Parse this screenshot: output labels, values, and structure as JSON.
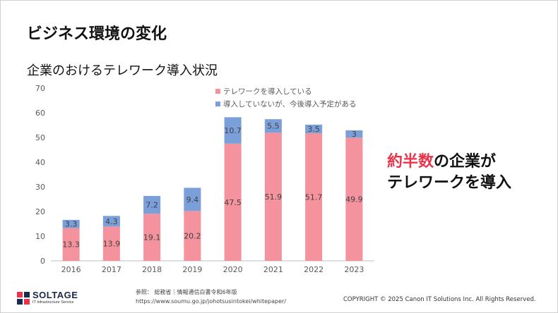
{
  "slide": {
    "title": "ビジネス環境の変化",
    "subtitle": "企業のおけるテレワーク導入状況",
    "callout_line1_highlight": "約半数",
    "callout_line1_rest": "の企業が",
    "callout_line2": "テレワークを導入",
    "source_line1": "参照： 総務省｜情報通信白書令和6年版",
    "source_line2": "https://www.soumu.go.jp/johotsusintokei/whitepaper/",
    "copyright": "COPYRIGHT © 2025 Canon IT Solutions Inc. All Rights Reserved.",
    "logo_text": "SOLTAGE",
    "logo_sub": "IT Infrastructure Service"
  },
  "colors": {
    "implemented": "#f4939d",
    "planned": "#7b9fd8",
    "accent": "#e8354a",
    "axis_text": "#595959",
    "bar_label": "#404040"
  },
  "chart_data": {
    "type": "bar",
    "stacked": true,
    "categories": [
      "2016",
      "2017",
      "2018",
      "2019",
      "2020",
      "2021",
      "2022",
      "2023"
    ],
    "series": [
      {
        "name": "テレワークを導入している",
        "values": [
          13.3,
          13.9,
          19.1,
          20.2,
          47.5,
          51.9,
          51.7,
          49.9
        ]
      },
      {
        "name": "導入していないが、今後導入予定がある",
        "values": [
          3.3,
          4.3,
          7.2,
          9.4,
          10.7,
          5.5,
          3.5,
          3
        ]
      }
    ],
    "y_ticks": [
      0,
      10,
      20,
      30,
      40,
      50,
      60,
      70
    ],
    "ylim": [
      0,
      70
    ],
    "grid": false,
    "legend": "top-right"
  }
}
